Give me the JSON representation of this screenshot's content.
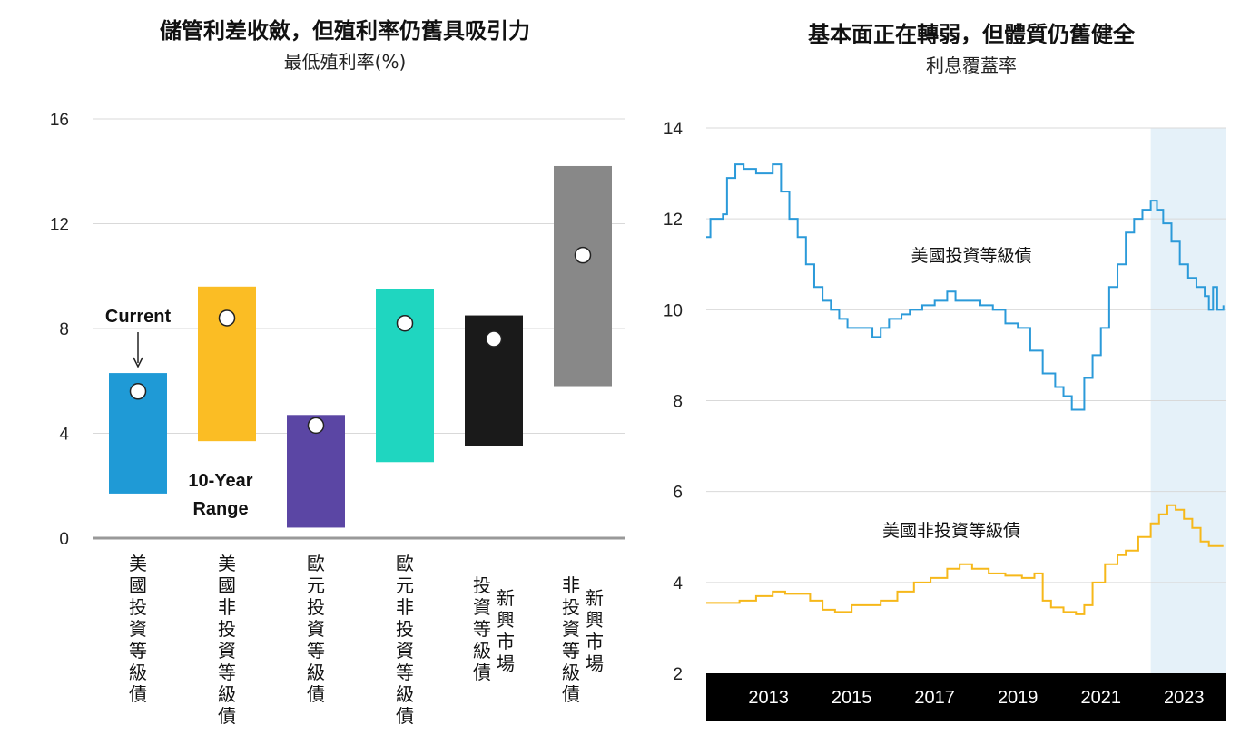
{
  "chart_data": [
    {
      "type": "bar",
      "subtype": "range-bar-with-marker",
      "title": "儲管利差收斂，但殖利率仍舊具吸引力",
      "subtitle": "最低殖利率(%)",
      "ylim": [
        0,
        16
      ],
      "yticks": [
        "0",
        "4",
        "8",
        "12",
        "16"
      ],
      "grid": true,
      "annotations": {
        "current": "Current",
        "range_line1": "10-Year",
        "range_line2": "Range"
      },
      "categories": [
        {
          "label": [
            "美國投資等級債"
          ],
          "low": 1.7,
          "high": 6.3,
          "current": 5.6,
          "color": "#1f9ad6"
        },
        {
          "label": [
            "美國非投資等級債"
          ],
          "low": 3.7,
          "high": 9.6,
          "current": 8.4,
          "color": "#fbbd24"
        },
        {
          "label": [
            "歐元投資等級債"
          ],
          "low": 0.4,
          "high": 4.7,
          "current": 4.3,
          "color": "#5b46a4"
        },
        {
          "label": [
            "歐元非投資等級債"
          ],
          "low": 2.9,
          "high": 9.5,
          "current": 8.2,
          "color": "#1fd6c0"
        },
        {
          "label": [
            "新興市場",
            "投資等級債"
          ],
          "low": 3.5,
          "high": 8.5,
          "current": 7.6,
          "color": "#1a1a1a"
        },
        {
          "label": [
            "新興市場",
            "非投資等級債"
          ],
          "low": 5.8,
          "high": 14.2,
          "current": 10.8,
          "color": "#888888"
        }
      ]
    },
    {
      "type": "line",
      "title": "基本面正在轉弱，但體質仍舊健全",
      "subtitle": "利息覆蓋率",
      "ylim": [
        2,
        14
      ],
      "yticks": [
        "2",
        "4",
        "6",
        "8",
        "10",
        "12",
        "14"
      ],
      "xlim": [
        2012.0,
        2024.5
      ],
      "xticks": [
        "2013",
        "2015",
        "2017",
        "2019",
        "2021",
        "2023"
      ],
      "grid": true,
      "highlight_range": [
        2022.7,
        2024.5
      ],
      "series": [
        {
          "name": "美國投資等級債",
          "color": "#2b9ad9",
          "points": [
            [
              2012.0,
              11.6
            ],
            [
              2012.1,
              12.0
            ],
            [
              2012.4,
              12.1
            ],
            [
              2012.5,
              12.9
            ],
            [
              2012.7,
              13.2
            ],
            [
              2012.9,
              13.1
            ],
            [
              2013.2,
              13.0
            ],
            [
              2013.5,
              13.0
            ],
            [
              2013.6,
              13.2
            ],
            [
              2013.8,
              12.6
            ],
            [
              2014.0,
              12.0
            ],
            [
              2014.2,
              11.6
            ],
            [
              2014.4,
              11.0
            ],
            [
              2014.6,
              10.5
            ],
            [
              2014.8,
              10.2
            ],
            [
              2015.0,
              10.0
            ],
            [
              2015.2,
              9.8
            ],
            [
              2015.4,
              9.6
            ],
            [
              2015.7,
              9.6
            ],
            [
              2016.0,
              9.4
            ],
            [
              2016.2,
              9.6
            ],
            [
              2016.4,
              9.8
            ],
            [
              2016.7,
              9.9
            ],
            [
              2016.9,
              10.0
            ],
            [
              2017.2,
              10.1
            ],
            [
              2017.5,
              10.2
            ],
            [
              2017.8,
              10.4
            ],
            [
              2018.0,
              10.2
            ],
            [
              2018.3,
              10.2
            ],
            [
              2018.6,
              10.1
            ],
            [
              2018.9,
              10.0
            ],
            [
              2019.2,
              9.7
            ],
            [
              2019.5,
              9.6
            ],
            [
              2019.8,
              9.1
            ],
            [
              2020.1,
              8.6
            ],
            [
              2020.4,
              8.3
            ],
            [
              2020.6,
              8.1
            ],
            [
              2020.8,
              7.8
            ],
            [
              2021.0,
              7.8
            ],
            [
              2021.1,
              8.5
            ],
            [
              2021.3,
              9.0
            ],
            [
              2021.5,
              9.6
            ],
            [
              2021.7,
              10.5
            ],
            [
              2021.9,
              11.0
            ],
            [
              2022.1,
              11.7
            ],
            [
              2022.3,
              12.0
            ],
            [
              2022.5,
              12.2
            ],
            [
              2022.7,
              12.4
            ],
            [
              2022.85,
              12.2
            ],
            [
              2023.0,
              11.9
            ],
            [
              2023.2,
              11.5
            ],
            [
              2023.4,
              11.0
            ],
            [
              2023.6,
              10.7
            ],
            [
              2023.8,
              10.5
            ],
            [
              2024.0,
              10.3
            ],
            [
              2024.1,
              10.0
            ],
            [
              2024.2,
              10.5
            ],
            [
              2024.3,
              10.0
            ],
            [
              2024.45,
              10.1
            ]
          ]
        },
        {
          "name": "美國非投資等級債",
          "color": "#f6b81a",
          "points": [
            [
              2012.0,
              3.55
            ],
            [
              2012.4,
              3.55
            ],
            [
              2012.8,
              3.6
            ],
            [
              2013.2,
              3.7
            ],
            [
              2013.6,
              3.8
            ],
            [
              2013.9,
              3.75
            ],
            [
              2014.2,
              3.75
            ],
            [
              2014.5,
              3.6
            ],
            [
              2014.8,
              3.4
            ],
            [
              2015.1,
              3.35
            ],
            [
              2015.5,
              3.5
            ],
            [
              2015.9,
              3.5
            ],
            [
              2016.2,
              3.6
            ],
            [
              2016.6,
              3.8
            ],
            [
              2017.0,
              4.0
            ],
            [
              2017.4,
              4.1
            ],
            [
              2017.8,
              4.3
            ],
            [
              2018.1,
              4.4
            ],
            [
              2018.4,
              4.3
            ],
            [
              2018.8,
              4.2
            ],
            [
              2019.2,
              4.15
            ],
            [
              2019.6,
              4.1
            ],
            [
              2019.9,
              4.2
            ],
            [
              2020.1,
              3.6
            ],
            [
              2020.3,
              3.45
            ],
            [
              2020.6,
              3.35
            ],
            [
              2020.9,
              3.3
            ],
            [
              2021.1,
              3.5
            ],
            [
              2021.3,
              4.0
            ],
            [
              2021.6,
              4.4
            ],
            [
              2021.9,
              4.6
            ],
            [
              2022.1,
              4.7
            ],
            [
              2022.4,
              5.0
            ],
            [
              2022.7,
              5.3
            ],
            [
              2022.9,
              5.5
            ],
            [
              2023.1,
              5.7
            ],
            [
              2023.3,
              5.6
            ],
            [
              2023.5,
              5.4
            ],
            [
              2023.7,
              5.2
            ],
            [
              2023.9,
              4.9
            ],
            [
              2024.1,
              4.8
            ],
            [
              2024.45,
              4.8
            ]
          ]
        }
      ]
    }
  ]
}
